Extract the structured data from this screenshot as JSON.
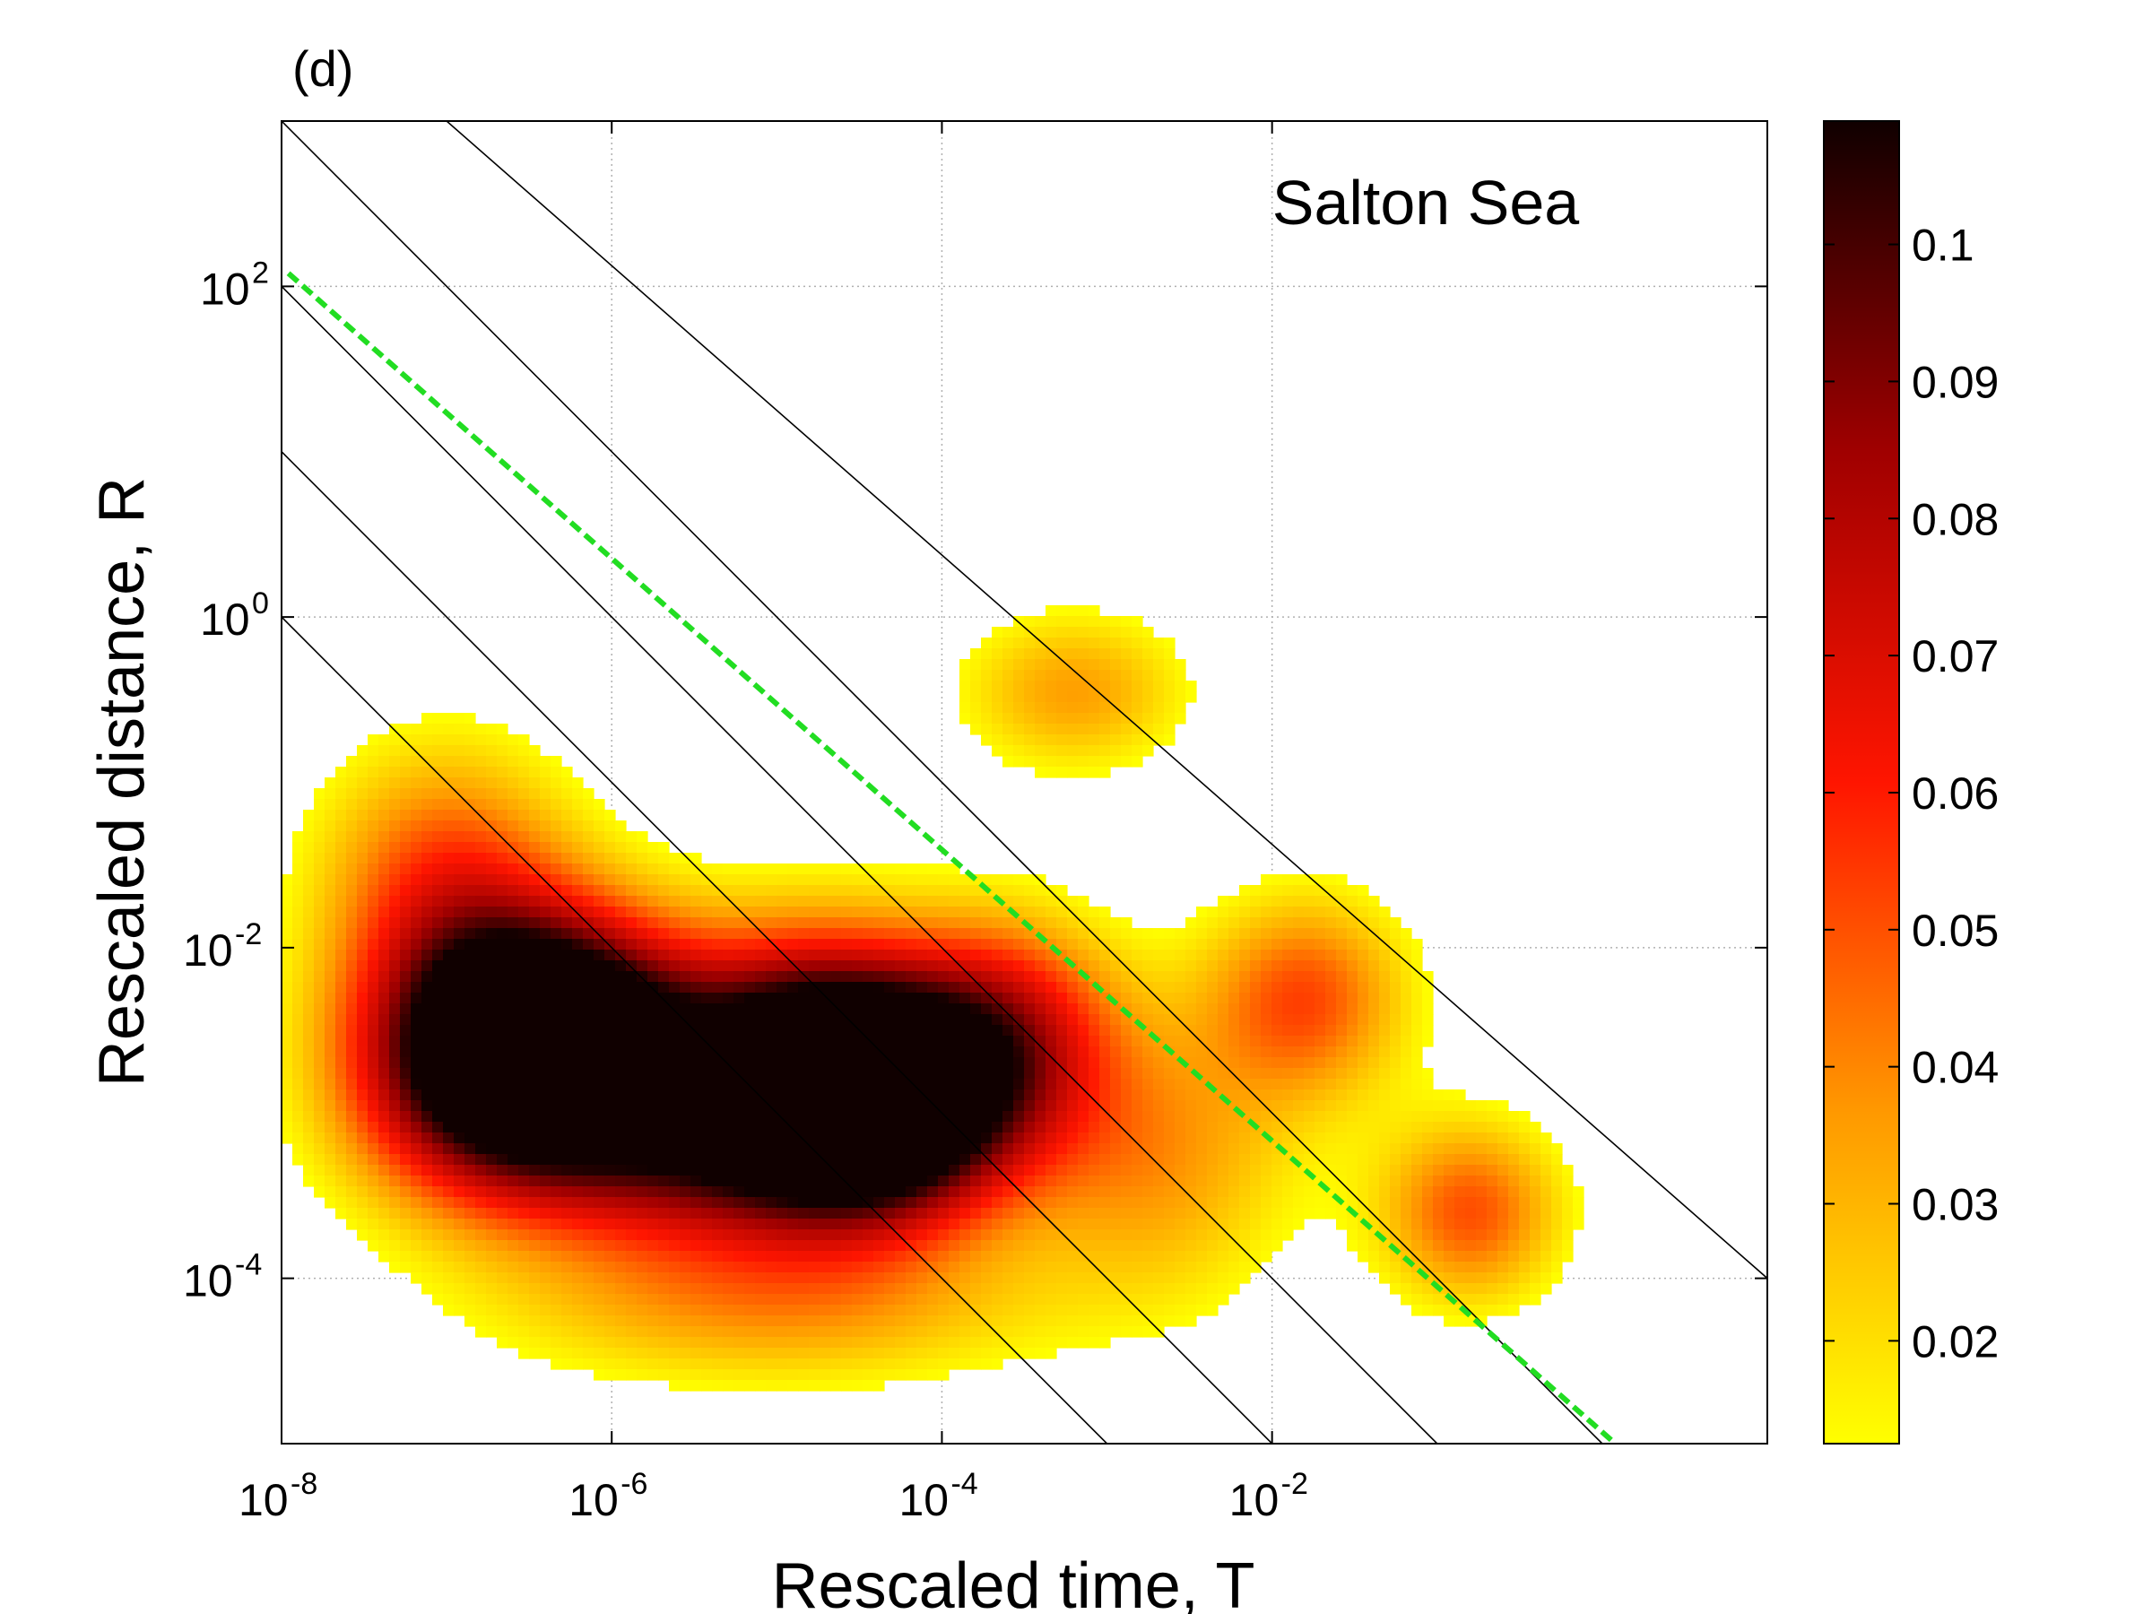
{
  "panel_label": "(d)",
  "chart_data": {
    "type": "heatmap",
    "title": "Salton Sea",
    "xlabel": "Rescaled time, T",
    "ylabel": "Rescaled distance, R",
    "x_scale": "log",
    "y_scale": "log",
    "xlim": [
      1e-08,
      10
    ],
    "ylim": [
      1e-05,
      1000
    ],
    "grid": true,
    "x_ticks": [
      {
        "value": 1e-08,
        "base": "10",
        "exp": "-8"
      },
      {
        "value": 1e-06,
        "base": "10",
        "exp": "-6"
      },
      {
        "value": 0.0001,
        "base": "10",
        "exp": "-4"
      },
      {
        "value": 0.01,
        "base": "10",
        "exp": "-2"
      }
    ],
    "y_ticks": [
      {
        "value": 0.0001,
        "base": "10",
        "exp": "-4"
      },
      {
        "value": 0.01,
        "base": "10",
        "exp": "-2"
      },
      {
        "value": 1,
        "base": "10",
        "exp": "0"
      },
      {
        "value": 100,
        "base": "10",
        "exp": "2"
      }
    ],
    "colorbar": {
      "min": 0.0125,
      "max": 0.109,
      "ticks": [
        "0.02",
        "0.03",
        "0.04",
        "0.05",
        "0.06",
        "0.07",
        "0.08",
        "0.09",
        "0.1"
      ],
      "tick_values": [
        0.02,
        0.03,
        0.04,
        0.05,
        0.06,
        0.07,
        0.08,
        0.09,
        0.1
      ],
      "colormap": "hot (reversed)",
      "colors": [
        "#ffff00",
        "#ff9900",
        "#ff1500",
        "#a00000",
        "#100000"
      ]
    },
    "density_clusters": [
      {
        "log_t": -6.8,
        "log_r": -2.7,
        "peak": 0.1,
        "sigma_t": 0.6,
        "sigma_r": 0.55
      },
      {
        "log_t": -6.2,
        "log_r": -2.45,
        "peak": 0.09,
        "sigma_t": 0.55,
        "sigma_r": 0.5
      },
      {
        "log_t": -4.8,
        "log_r": -2.65,
        "peak": 0.1,
        "sigma_t": 0.6,
        "sigma_r": 0.55
      },
      {
        "log_t": -4.3,
        "log_r": -3.0,
        "peak": 0.09,
        "sigma_t": 0.55,
        "sigma_r": 0.5
      },
      {
        "log_t": -5.5,
        "log_r": -3.2,
        "peak": 0.075,
        "sigma_t": 0.9,
        "sigma_r": 0.5
      },
      {
        "log_t": -7.0,
        "log_r": -1.6,
        "peak": 0.05,
        "sigma_t": 0.55,
        "sigma_r": 0.6
      },
      {
        "log_t": -3.6,
        "log_r": -2.5,
        "peak": 0.06,
        "sigma_t": 0.5,
        "sigma_r": 0.5
      },
      {
        "log_t": -2.7,
        "log_r": -3.3,
        "peak": 0.035,
        "sigma_t": 0.6,
        "sigma_r": 0.6
      },
      {
        "log_t": -1.8,
        "log_r": -2.3,
        "peak": 0.05,
        "sigma_t": 0.45,
        "sigma_r": 0.45
      },
      {
        "log_t": -0.8,
        "log_r": -3.6,
        "peak": 0.05,
        "sigma_t": 0.4,
        "sigma_r": 0.4
      },
      {
        "log_t": -3.2,
        "log_r": -0.45,
        "peak": 0.035,
        "sigma_t": 0.5,
        "sigma_r": 0.35
      },
      {
        "log_t": -5.0,
        "log_r": -4.2,
        "peak": 0.03,
        "sigma_t": 1.2,
        "sigma_r": 0.35
      }
    ],
    "reference_lines": [
      {
        "style": "thin-black",
        "from": [
          1e-08,
          1
        ],
        "to": [
          0.001,
          1e-05
        ]
      },
      {
        "style": "thin-black",
        "from": [
          1e-08,
          10
        ],
        "to": [
          0.01,
          1e-05
        ]
      },
      {
        "style": "thin-black",
        "from": [
          1e-08,
          100
        ],
        "to": [
          0.1,
          1e-05
        ]
      },
      {
        "style": "thin-black",
        "from": [
          1e-08,
          1000
        ],
        "to": [
          1,
          1e-05
        ]
      },
      {
        "style": "thin-black",
        "from": [
          1e-07,
          1000
        ],
        "to": [
          10,
          0.0001
        ]
      },
      {
        "style": "dashed-green",
        "color": "#22dd22",
        "from": [
          1.1e-08,
          120
        ],
        "to": [
          1.2,
          1e-05
        ]
      }
    ]
  }
}
